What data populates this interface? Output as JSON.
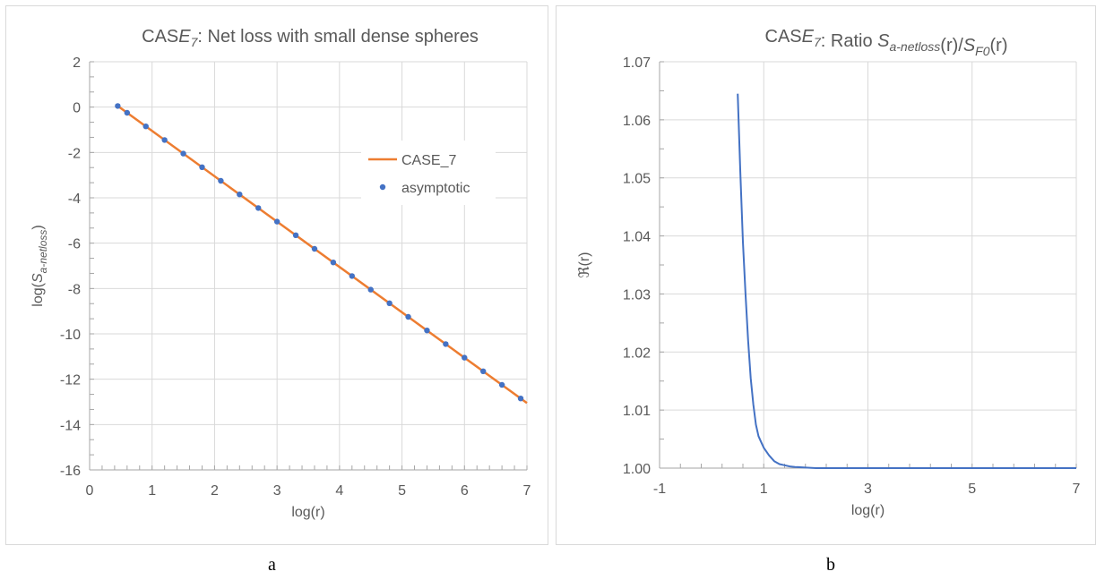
{
  "chart_data": [
    {
      "type": "scatter",
      "title": "CASE_7: Net loss with small dense spheres",
      "xlabel": "log(r)",
      "ylabel": "log(S_a-netloss)",
      "xlim": [
        0,
        7
      ],
      "ylim": [
        -16,
        2
      ],
      "xticks": [
        "0",
        "1",
        "2",
        "3",
        "4",
        "5",
        "6",
        "7"
      ],
      "yticks": [
        "2",
        "0",
        "-2",
        "-4",
        "-6",
        "-8",
        "-10",
        "-12",
        "-14",
        "-16"
      ],
      "grid": true,
      "legend": "right",
      "series": [
        {
          "name": "CASE_7",
          "kind": "line",
          "color": "#ED7D31",
          "x": [
            0.45,
            7.0
          ],
          "y": [
            0.05,
            -13.05
          ]
        },
        {
          "name": "asymptotic",
          "kind": "markers",
          "color": "#4472C4",
          "x": [
            0.45,
            0.6,
            0.9,
            1.2,
            1.5,
            1.8,
            2.1,
            2.4,
            2.7,
            3.0,
            3.3,
            3.6,
            3.9,
            4.2,
            4.5,
            4.8,
            5.1,
            5.4,
            5.7,
            6.0,
            6.3,
            6.6,
            6.9
          ],
          "y": [
            0.05,
            -0.25,
            -0.85,
            -1.45,
            -2.05,
            -2.65,
            -3.25,
            -3.85,
            -4.45,
            -5.05,
            -5.65,
            -6.25,
            -6.85,
            -7.45,
            -8.05,
            -8.65,
            -9.25,
            -9.85,
            -10.45,
            -11.05,
            -11.65,
            -12.25,
            -12.85
          ]
        }
      ]
    },
    {
      "type": "line",
      "title": "CASE_7: Ratio S_a-netloss(r)/S_F0(r)",
      "xlabel": "log(r)",
      "ylabel": "ℜ(r)",
      "xlim": [
        -1,
        7
      ],
      "ylim": [
        1.0,
        1.07
      ],
      "xticks": [
        "-1",
        "1",
        "3",
        "5",
        "7"
      ],
      "yticks": [
        "1.07",
        "1.06",
        "1.05",
        "1.04",
        "1.03",
        "1.02",
        "1.01",
        "1.00"
      ],
      "grid": true,
      "series": [
        {
          "name": "",
          "color": "#4472C4",
          "x": [
            0.5,
            0.55,
            0.6,
            0.65,
            0.7,
            0.75,
            0.8,
            0.85,
            0.9,
            0.95,
            1.0,
            1.1,
            1.2,
            1.3,
            1.4,
            1.5,
            1.6,
            1.8,
            2.0,
            2.5,
            3.0,
            4.0,
            5.0,
            6.0,
            7.0
          ],
          "y": [
            1.0645,
            1.051,
            1.039,
            1.03,
            1.022,
            1.0155,
            1.011,
            1.0075,
            1.0055,
            1.0045,
            1.0035,
            1.0022,
            1.0012,
            1.0007,
            1.0005,
            1.0003,
            1.0002,
            1.0001,
            1.0,
            1.0,
            1.0,
            1.0,
            1.0,
            1.0,
            1.0
          ]
        }
      ]
    }
  ],
  "captions": {
    "a": "a",
    "b": "b"
  }
}
